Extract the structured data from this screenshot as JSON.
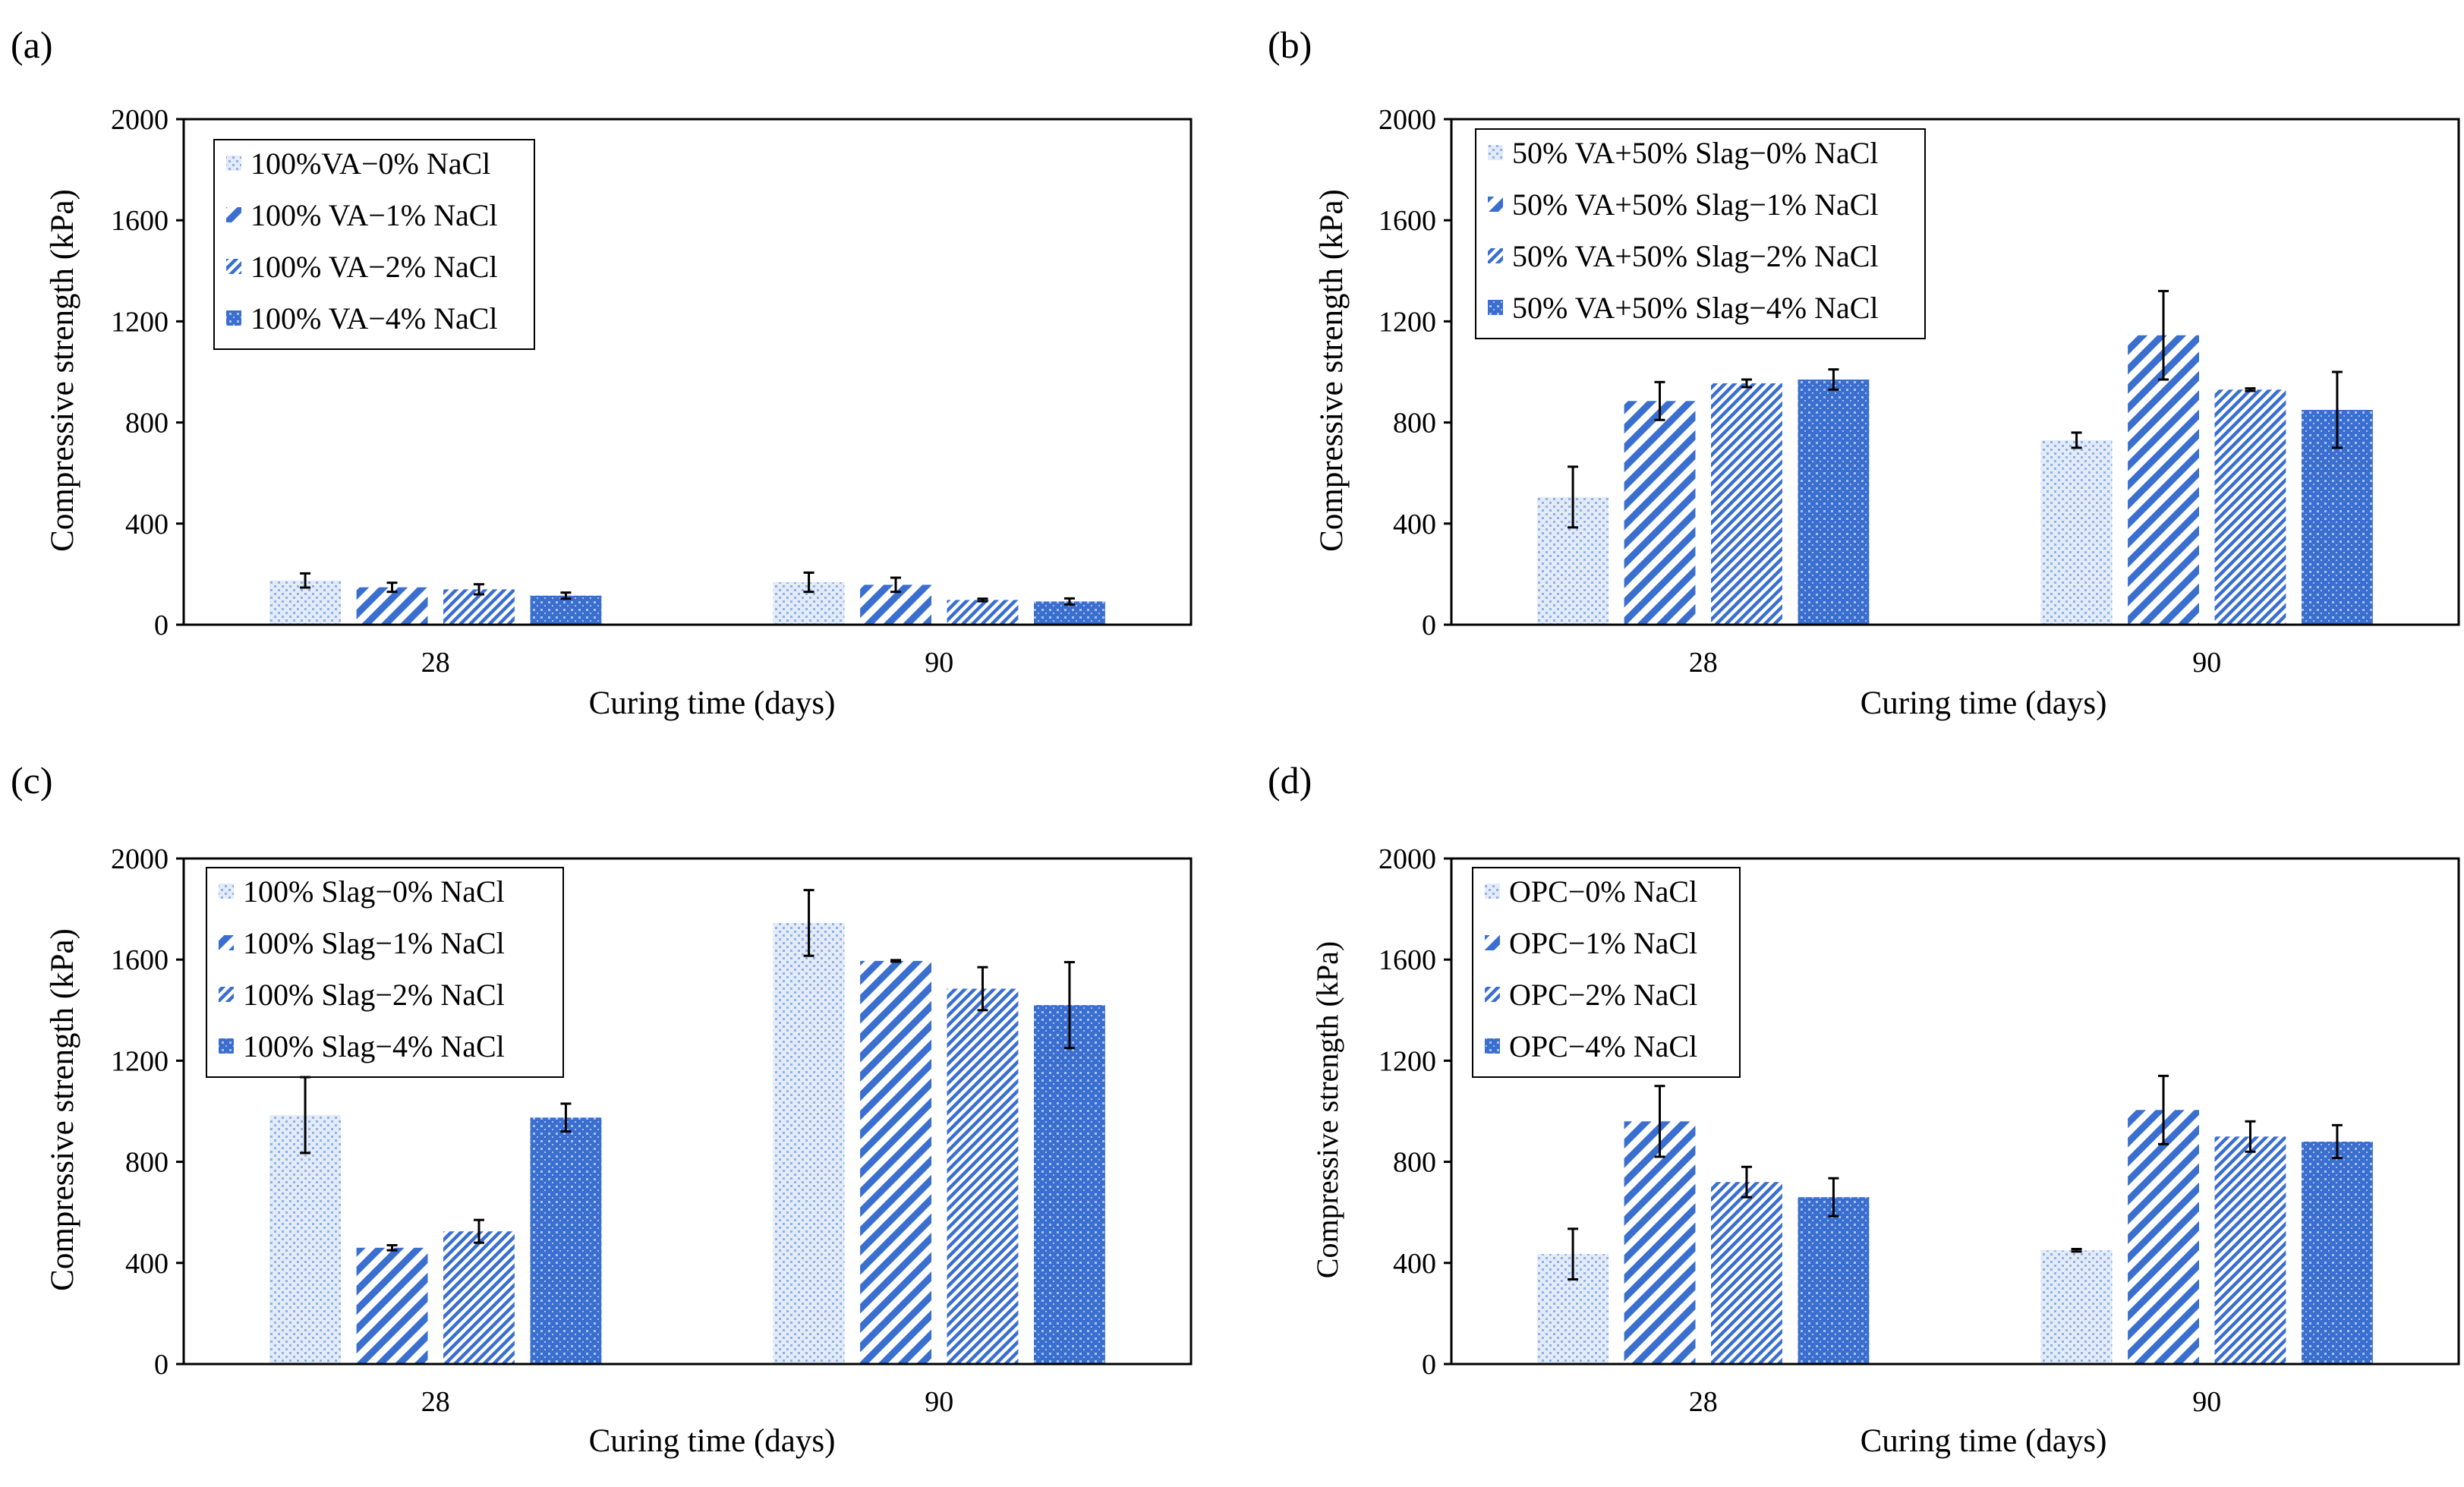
{
  "chart_data": [
    {
      "panel_label": "(a)",
      "type": "bar",
      "categories": [
        "28",
        "90"
      ],
      "xlabel": "Curing time (days)",
      "ylabel": "Compressive  strength (kPa)",
      "ylim": [
        0,
        2000
      ],
      "yticks": [
        "0",
        "400",
        "800",
        "1200",
        "1600",
        "2000"
      ],
      "grid": false,
      "legend_position": "top-left",
      "series": [
        {
          "name": "100%VA−0% NaCl",
          "pattern": "dots-light",
          "values": [
            175,
            168
          ],
          "errors": [
            28,
            38
          ]
        },
        {
          "name": "100% VA−1% NaCl",
          "pattern": "diag-wide",
          "values": [
            148,
            158
          ],
          "errors": [
            18,
            28
          ]
        },
        {
          "name": "100% VA−2% NaCl",
          "pattern": "diag-fine",
          "values": [
            140,
            98
          ],
          "errors": [
            20,
            5
          ]
        },
        {
          "name": "100% VA−4% NaCl",
          "pattern": "grid-dense",
          "values": [
            115,
            92
          ],
          "errors": [
            12,
            12
          ]
        }
      ]
    },
    {
      "panel_label": "(b)",
      "type": "bar",
      "categories": [
        "28",
        "90"
      ],
      "xlabel": "Curing time (days)",
      "ylabel": "Compressive  strength  (kPa)",
      "ylim": [
        0,
        2000
      ],
      "yticks": [
        "0",
        "400",
        "800",
        "1200",
        "1600",
        "2000"
      ],
      "grid": false,
      "legend_position": "top-left",
      "series": [
        {
          "name": "50% VA+50% Slag−0% NaCl",
          "pattern": "dots-light",
          "values": [
            505,
            730
          ],
          "errors": [
            120,
            30
          ]
        },
        {
          "name": "50% VA+50% Slag−1% NaCl",
          "pattern": "diag-wide",
          "values": [
            885,
            1145
          ],
          "errors": [
            75,
            175
          ]
        },
        {
          "name": "50% VA+50% Slag−2% NaCl",
          "pattern": "diag-fine",
          "values": [
            955,
            930
          ],
          "errors": [
            15,
            5
          ]
        },
        {
          "name": "50% VA+50% Slag−4% NaCl",
          "pattern": "grid-dense",
          "values": [
            970,
            850
          ],
          "errors": [
            40,
            150
          ]
        }
      ]
    },
    {
      "panel_label": "(c)",
      "type": "bar",
      "categories": [
        "28",
        "90"
      ],
      "xlabel": "Curing time (days)",
      "ylabel": "Compressive  strength  (kPa)",
      "ylim": [
        0,
        2000
      ],
      "yticks": [
        "0",
        "400",
        "800",
        "1200",
        "1600",
        "2000"
      ],
      "grid": false,
      "legend_position": "top-left",
      "series": [
        {
          "name": "100% Slag−0% NaCl",
          "pattern": "dots-light",
          "values": [
            985,
            1745
          ],
          "errors": [
            150,
            130
          ]
        },
        {
          "name": "100% Slag−1% NaCl",
          "pattern": "diag-wide",
          "values": [
            460,
            1595
          ],
          "errors": [
            10,
            3
          ]
        },
        {
          "name": "100% Slag−2% NaCl",
          "pattern": "diag-fine",
          "values": [
            525,
            1485
          ],
          "errors": [
            45,
            85
          ]
        },
        {
          "name": "100% Slag−4% NaCl",
          "pattern": "grid-dense",
          "values": [
            975,
            1420
          ],
          "errors": [
            55,
            170
          ]
        }
      ]
    },
    {
      "panel_label": "(d)",
      "type": "bar",
      "categories": [
        "28",
        "90"
      ],
      "xlabel": "Curing time (days)",
      "ylabel": "Compressive strength (kPa)",
      "ylim": [
        0,
        2000
      ],
      "yticks": [
        "0",
        "400",
        "800",
        "1200",
        "1600",
        "2000"
      ],
      "grid": false,
      "legend_position": "top-left",
      "series": [
        {
          "name": "OPC−0% NaCl",
          "pattern": "dots-light",
          "values": [
            435,
            450
          ],
          "errors": [
            100,
            5
          ]
        },
        {
          "name": "OPC−1% NaCl",
          "pattern": "diag-wide",
          "values": [
            960,
            1005
          ],
          "errors": [
            140,
            135
          ]
        },
        {
          "name": "OPC−2% NaCl",
          "pattern": "diag-fine",
          "values": [
            720,
            900
          ],
          "errors": [
            60,
            60
          ]
        },
        {
          "name": "OPC−4% NaCl",
          "pattern": "grid-dense",
          "values": [
            660,
            880
          ],
          "errors": [
            75,
            65
          ]
        }
      ]
    }
  ],
  "colors": {
    "bar_blue": "#3a6fd0",
    "bar_light": "#9cb8ea",
    "axis": "#000000",
    "error_bar": "#000000"
  }
}
